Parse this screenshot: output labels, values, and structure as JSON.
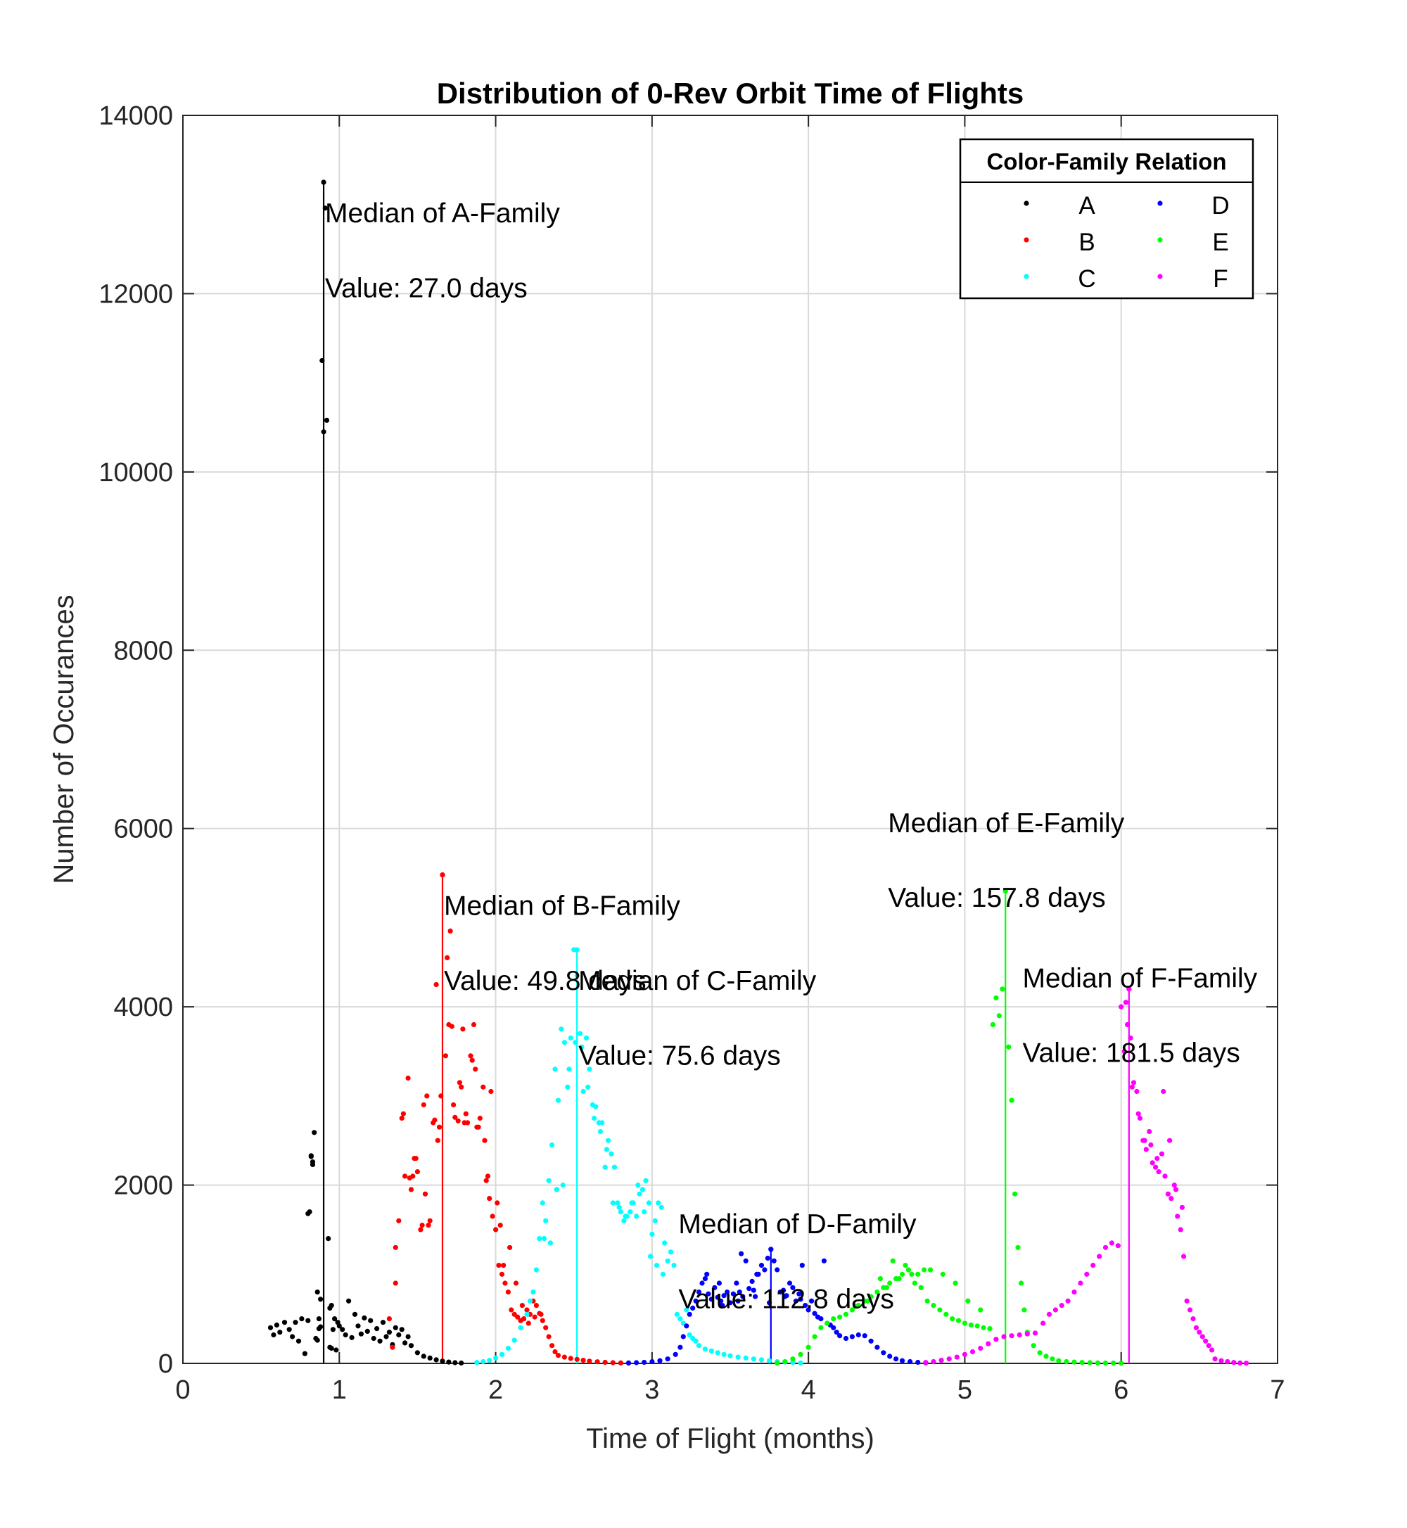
{
  "chart_data": {
    "type": "scatter",
    "title": "Distribution of 0-Rev Orbit Time of Flights",
    "xlabel": "Time of Flight (months)",
    "ylabel": "Number of Occurances",
    "xlim": [
      0,
      7
    ],
    "ylim": [
      0,
      14000
    ],
    "x_ticks": [
      "0",
      "1",
      "2",
      "3",
      "4",
      "5",
      "6",
      "7"
    ],
    "y_ticks": [
      "0",
      "2000",
      "4000",
      "6000",
      "8000",
      "10000",
      "12000",
      "14000"
    ],
    "grid": true,
    "legend": {
      "title": "Color-Family Relation",
      "placement": "top-right",
      "columns": 2,
      "entries": [
        {
          "label": "A",
          "color": "#000000"
        },
        {
          "label": "B",
          "color": "#ff0000"
        },
        {
          "label": "C",
          "color": "#00ffff"
        },
        {
          "label": "D",
          "color": "#0000ff"
        },
        {
          "label": "E",
          "color": "#00ff00"
        },
        {
          "label": "F",
          "color": "#ff00ff"
        }
      ]
    },
    "medians": [
      {
        "family": "A",
        "x": 0.9,
        "y_top": 13250,
        "color": "#000000",
        "line1": "Median of A-Family",
        "line2": "Value: 27.0 days",
        "text_x": 0.9,
        "text_y1": 12800,
        "text_y2": 11960
      },
      {
        "family": "B",
        "x": 1.66,
        "y_top": 5480,
        "color": "#ff0000",
        "line1": "Median of B-Family",
        "line2": "Value: 49.8 days",
        "text_x": 1.66,
        "text_y1": 5030,
        "text_y2": 4190
      },
      {
        "family": "C",
        "x": 2.52,
        "y_top": 4640,
        "color": "#00ffff",
        "line1": "Median of C-Family",
        "line2": "Value: 75.6 days",
        "text_x": 2.52,
        "text_y1": 4190,
        "text_y2": 3350
      },
      {
        "family": "D",
        "x": 3.76,
        "y_top": 1280,
        "color": "#0000ff",
        "line1": "Median of D-Family",
        "line2": "Value: 112.8 days",
        "text_x": 3.16,
        "text_y1": 1460,
        "text_y2": 620
      },
      {
        "family": "E",
        "x": 5.26,
        "y_top": 5300,
        "color": "#00ff00",
        "line1": "Median of E-Family",
        "line2": "Value: 157.8 days",
        "text_x": 4.5,
        "text_y1": 5960,
        "text_y2": 5120
      },
      {
        "family": "F",
        "x": 6.05,
        "y_top": 4200,
        "color": "#ff00ff",
        "line1": "Median of F-Family",
        "line2": "Value: 181.5 days",
        "text_x": 5.36,
        "text_y1": 4220,
        "text_y2": 3380
      }
    ],
    "series": [
      {
        "name": "A",
        "color": "#000000",
        "x": [
          0.56,
          0.58,
          0.6,
          0.62,
          0.65,
          0.68,
          0.7,
          0.72,
          0.74,
          0.76,
          0.78,
          0.8,
          0.82,
          0.83,
          0.84,
          0.85,
          0.86,
          0.87,
          0.88,
          0.89,
          0.9,
          0.91,
          0.92,
          0.93,
          0.94,
          0.95,
          0.96,
          0.97,
          0.98,
          0.99,
          1.0,
          1.02,
          1.04,
          1.06,
          1.08,
          1.1,
          1.12,
          1.14,
          1.16,
          1.18,
          1.2,
          1.22,
          1.24,
          1.26,
          1.28,
          1.3,
          1.32,
          1.34,
          1.36,
          1.38,
          1.4,
          1.42,
          1.44,
          1.46,
          1.5,
          1.54,
          1.58,
          1.62,
          1.66,
          1.7,
          1.74,
          1.78,
          0.81,
          0.82,
          0.83,
          0.8,
          0.86,
          0.87,
          0.88,
          0.94,
          0.95
        ],
        "y": [
          400,
          320,
          430,
          350,
          460,
          380,
          300,
          460,
          250,
          500,
          110,
          480,
          2330,
          2260,
          2590,
          280,
          800,
          500,
          720,
          11250,
          10450,
          12960,
          10580,
          1400,
          180,
          650,
          380,
          500,
          150,
          460,
          420,
          380,
          320,
          700,
          290,
          550,
          420,
          330,
          510,
          360,
          480,
          280,
          390,
          250,
          460,
          300,
          350,
          210,
          400,
          320,
          380,
          230,
          300,
          200,
          120,
          80,
          60,
          40,
          25,
          15,
          8,
          4,
          1700,
          2320,
          2230,
          1680,
          260,
          390,
          410,
          620,
          170
        ]
      },
      {
        "name": "B",
        "color": "#ff0000",
        "x": [
          1.32,
          1.34,
          1.36,
          1.38,
          1.4,
          1.42,
          1.44,
          1.46,
          1.48,
          1.5,
          1.52,
          1.54,
          1.56,
          1.58,
          1.6,
          1.62,
          1.64,
          1.66,
          1.68,
          1.7,
          1.72,
          1.74,
          1.76,
          1.78,
          1.8,
          1.82,
          1.84,
          1.86,
          1.88,
          1.9,
          1.92,
          1.94,
          1.96,
          1.98,
          2.0,
          2.02,
          2.04,
          2.06,
          2.08,
          2.1,
          2.12,
          2.14,
          2.16,
          2.18,
          2.2,
          2.22,
          2.24,
          2.26,
          2.28,
          2.3,
          2.32,
          2.34,
          2.36,
          2.38,
          2.4,
          2.44,
          2.48,
          2.52,
          2.56,
          2.6,
          2.65,
          2.7,
          2.75,
          2.8,
          2.85,
          1.41,
          1.45,
          1.49,
          1.53,
          1.57,
          1.61,
          1.65,
          1.69,
          1.73,
          1.77,
          1.81,
          1.85,
          1.89,
          1.93,
          1.97,
          2.01,
          2.05,
          2.09,
          2.13,
          2.17,
          2.21,
          2.25,
          2.29,
          1.36,
          1.47,
          1.55,
          1.63,
          1.71,
          1.79,
          1.87,
          1.95,
          2.03
        ],
        "y": [
          500,
          180,
          1300,
          1600,
          2750,
          2100,
          3200,
          1950,
          2300,
          2150,
          1500,
          2900,
          3000,
          1600,
          2700,
          4250,
          2650,
          5480,
          3450,
          3800,
          3780,
          2760,
          2720,
          3100,
          2700,
          2700,
          3450,
          3800,
          2650,
          2750,
          3100,
          2050,
          1850,
          1650,
          1500,
          1100,
          1000,
          900,
          800,
          600,
          550,
          520,
          480,
          500,
          600,
          550,
          700,
          650,
          560,
          480,
          400,
          300,
          200,
          130,
          90,
          70,
          55,
          45,
          35,
          25,
          18,
          12,
          8,
          5,
          3,
          2800,
          2080,
          2300,
          1550,
          1550,
          2730,
          3000,
          4550,
          2900,
          3150,
          2800,
          3400,
          2650,
          2500,
          3050,
          1800,
          1100,
          1300,
          900,
          650,
          450,
          520,
          550,
          900,
          2100,
          1900,
          2500,
          4850,
          3750,
          3300,
          2100,
          1550
        ]
      },
      {
        "name": "C",
        "color": "#00ffff",
        "x": [
          1.88,
          1.92,
          1.96,
          2.0,
          2.04,
          2.08,
          2.12,
          2.16,
          2.2,
          2.22,
          2.24,
          2.26,
          2.28,
          2.3,
          2.32,
          2.34,
          2.36,
          2.38,
          2.4,
          2.42,
          2.44,
          2.46,
          2.48,
          2.5,
          2.52,
          2.54,
          2.56,
          2.58,
          2.6,
          2.62,
          2.64,
          2.66,
          2.68,
          2.7,
          2.72,
          2.74,
          2.76,
          2.78,
          2.8,
          2.82,
          2.84,
          2.86,
          2.88,
          2.9,
          2.92,
          2.94,
          2.96,
          2.98,
          3.0,
          3.02,
          3.04,
          3.06,
          3.08,
          3.1,
          3.12,
          3.14,
          3.16,
          3.18,
          3.2,
          3.22,
          3.24,
          3.26,
          3.28,
          3.3,
          3.34,
          3.38,
          3.42,
          3.46,
          3.5,
          3.55,
          3.6,
          3.65,
          3.7,
          3.75,
          3.8,
          3.85,
          3.9,
          3.95,
          2.31,
          2.35,
          2.39,
          2.43,
          2.47,
          2.51,
          2.55,
          2.59,
          2.63,
          2.67,
          2.71,
          2.75,
          2.79,
          2.83,
          2.87,
          2.91,
          2.95,
          2.99,
          3.03,
          3.07
        ],
        "y": [
          10,
          20,
          35,
          60,
          100,
          170,
          260,
          400,
          550,
          700,
          800,
          1050,
          1400,
          1800,
          1600,
          2050,
          2450,
          3300,
          2950,
          3750,
          3600,
          3100,
          3650,
          4640,
          4350,
          3700,
          3050,
          3650,
          3300,
          2900,
          2880,
          2700,
          2700,
          2200,
          2500,
          2350,
          2200,
          1800,
          1700,
          1600,
          1650,
          1700,
          1800,
          1650,
          1900,
          1950,
          2050,
          1800,
          1450,
          1600,
          1800,
          1750,
          1350,
          1150,
          1250,
          1100,
          550,
          500,
          450,
          600,
          320,
          280,
          250,
          200,
          160,
          140,
          120,
          100,
          85,
          70,
          60,
          50,
          40,
          30,
          20,
          15,
          10,
          5,
          1400,
          1350,
          1950,
          2000,
          3300,
          3600,
          3550,
          3100,
          2750,
          2600,
          2400,
          1800,
          1750,
          1650,
          1800,
          2000,
          1700,
          1200,
          1100,
          1000
        ]
      },
      {
        "name": "D",
        "color": "#0000ff",
        "x": [
          2.85,
          2.9,
          2.95,
          3.0,
          3.05,
          3.1,
          3.15,
          3.18,
          3.2,
          3.22,
          3.24,
          3.26,
          3.28,
          3.3,
          3.32,
          3.34,
          3.36,
          3.38,
          3.4,
          3.42,
          3.44,
          3.46,
          3.48,
          3.5,
          3.52,
          3.54,
          3.56,
          3.58,
          3.6,
          3.62,
          3.64,
          3.66,
          3.68,
          3.7,
          3.72,
          3.74,
          3.76,
          3.78,
          3.8,
          3.82,
          3.84,
          3.86,
          3.88,
          3.9,
          3.92,
          3.94,
          3.96,
          3.98,
          4.0,
          4.02,
          4.04,
          4.06,
          4.08,
          4.1,
          4.12,
          4.14,
          4.16,
          4.18,
          4.2,
          4.24,
          4.28,
          4.32,
          4.36,
          4.4,
          4.44,
          4.48,
          4.52,
          4.56,
          4.6,
          4.65,
          4.7,
          4.75,
          3.35,
          3.45,
          3.55,
          3.65,
          3.75,
          3.85,
          3.95,
          3.43,
          3.57,
          3.67
        ],
        "y": [
          5,
          8,
          12,
          20,
          30,
          50,
          100,
          180,
          300,
          420,
          550,
          620,
          700,
          800,
          900,
          950,
          780,
          720,
          850,
          740,
          700,
          760,
          800,
          680,
          780,
          900,
          800,
          750,
          1150,
          840,
          920,
          750,
          1000,
          1100,
          1050,
          1180,
          1280,
          1150,
          1050,
          800,
          820,
          760,
          900,
          850,
          700,
          780,
          1100,
          650,
          600,
          700,
          560,
          520,
          500,
          1150,
          450,
          430,
          400,
          350,
          310,
          280,
          300,
          320,
          310,
          250,
          180,
          120,
          80,
          50,
          30,
          20,
          12,
          6,
          1000,
          650,
          700,
          820,
          680,
          750,
          720,
          900,
          1230,
          1000
        ]
      },
      {
        "name": "E",
        "color": "#00ff00",
        "x": [
          3.8,
          3.85,
          3.9,
          3.95,
          4.0,
          4.04,
          4.08,
          4.12,
          4.16,
          4.2,
          4.24,
          4.28,
          4.32,
          4.36,
          4.4,
          4.44,
          4.48,
          4.52,
          4.56,
          4.6,
          4.64,
          4.68,
          4.72,
          4.76,
          4.8,
          4.84,
          4.88,
          4.92,
          4.96,
          5.0,
          5.04,
          5.08,
          5.12,
          5.16,
          5.18,
          5.2,
          5.22,
          5.24,
          5.26,
          5.28,
          5.3,
          5.32,
          5.34,
          5.36,
          5.38,
          5.4,
          5.44,
          5.48,
          5.52,
          5.56,
          5.6,
          5.65,
          5.7,
          5.75,
          5.8,
          5.85,
          5.9,
          5.95,
          6.0,
          4.3,
          4.38,
          4.46,
          4.54,
          4.62,
          4.7,
          4.78,
          4.86,
          4.94,
          5.02,
          5.1,
          4.5,
          4.58,
          4.66,
          4.74
        ],
        "y": [
          5,
          20,
          50,
          100,
          180,
          300,
          400,
          450,
          500,
          520,
          550,
          600,
          650,
          700,
          750,
          800,
          850,
          900,
          950,
          1000,
          1050,
          900,
          850,
          700,
          650,
          600,
          550,
          500,
          480,
          450,
          430,
          420,
          400,
          390,
          3800,
          4100,
          3900,
          4200,
          5300,
          3550,
          2950,
          1900,
          1300,
          900,
          600,
          350,
          200,
          120,
          80,
          50,
          30,
          20,
          15,
          10,
          8,
          5,
          4,
          3,
          2,
          640,
          700,
          950,
          1150,
          1100,
          1000,
          1050,
          1000,
          900,
          700,
          600,
          850,
          950,
          1000,
          1050
        ]
      },
      {
        "name": "F",
        "color": "#ff00ff",
        "x": [
          4.75,
          4.8,
          4.85,
          4.9,
          4.95,
          5.0,
          5.05,
          5.1,
          5.15,
          5.2,
          5.25,
          5.3,
          5.35,
          5.4,
          5.45,
          5.5,
          5.54,
          5.58,
          5.62,
          5.66,
          5.7,
          5.74,
          5.78,
          5.82,
          5.86,
          5.9,
          5.94,
          5.98,
          6.0,
          6.02,
          6.04,
          6.05,
          6.06,
          6.08,
          6.1,
          6.12,
          6.14,
          6.16,
          6.18,
          6.2,
          6.22,
          6.24,
          6.26,
          6.28,
          6.3,
          6.32,
          6.34,
          6.36,
          6.38,
          6.4,
          6.42,
          6.44,
          6.46,
          6.48,
          6.5,
          6.52,
          6.54,
          6.56,
          6.58,
          6.6,
          6.64,
          6.68,
          6.72,
          6.76,
          6.8,
          6.03,
          6.07,
          6.11,
          6.15,
          6.19,
          6.23,
          6.27,
          6.31,
          6.35,
          6.39
        ],
        "y": [
          10,
          20,
          35,
          50,
          70,
          100,
          130,
          170,
          220,
          270,
          300,
          310,
          320,
          330,
          340,
          450,
          550,
          600,
          650,
          700,
          800,
          900,
          1000,
          1100,
          1200,
          1300,
          1350,
          1320,
          4000,
          3500,
          3800,
          4200,
          3650,
          3150,
          3050,
          2750,
          2500,
          2400,
          2600,
          2250,
          2200,
          2150,
          2350,
          2100,
          1900,
          1850,
          2000,
          1650,
          1500,
          1200,
          700,
          600,
          500,
          400,
          350,
          300,
          250,
          200,
          150,
          50,
          30,
          20,
          10,
          5,
          2,
          4050,
          3100,
          2800,
          2500,
          2450,
          2300,
          3050,
          2500,
          1950,
          1750
        ]
      }
    ]
  }
}
